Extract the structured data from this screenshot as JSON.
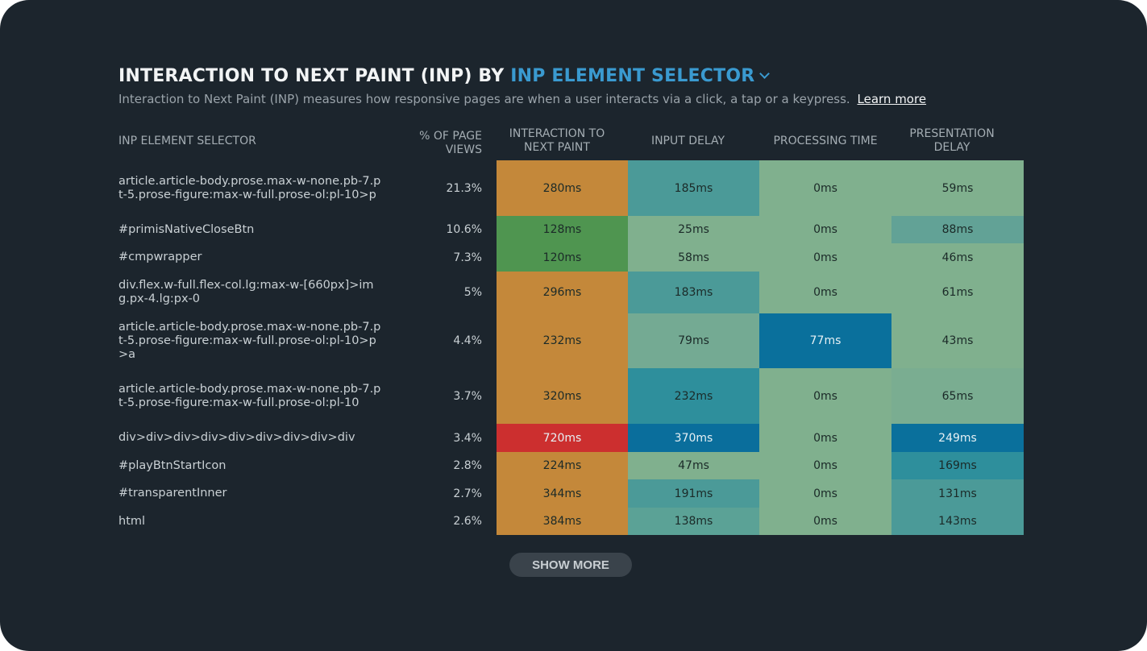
{
  "title": {
    "prefix": "INTERACTION TO NEXT PAINT (INP) BY",
    "dimension": "INP ELEMENT SELECTOR"
  },
  "subtitle": {
    "text": "Interaction to Next Paint (INP) measures how responsive pages are when a user interacts via a click, a tap or a keypress.",
    "link": "Learn more"
  },
  "show_more": "SHOW MORE",
  "chart_data": {
    "type": "table",
    "title": "INTERACTION TO NEXT PAINT (INP) BY INP ELEMENT SELECTOR",
    "columns": [
      "INP ELEMENT SELECTOR",
      "% OF PAGE VIEWS",
      "INTERACTION TO NEXT PAINT",
      "INPUT DELAY",
      "PROCESSING TIME",
      "PRESENTATION DELAY"
    ],
    "rows": [
      {
        "selector": "article.article-body.prose.max-w-none.pb-7.pt-5.prose-figure:max-w-full.prose-ol:pl-10>p",
        "pct": "21.3%",
        "values": [
          "280ms",
          "185ms",
          "0ms",
          "59ms"
        ],
        "colors": [
          "#c4883a",
          "#4b9a98",
          "#80b08e",
          "#80b08e"
        ]
      },
      {
        "selector": "#primisNativeCloseBtn",
        "pct": "10.6%",
        "values": [
          "128ms",
          "25ms",
          "0ms",
          "88ms"
        ],
        "colors": [
          "#4f9550",
          "#80b08e",
          "#80b08e",
          "#62a296"
        ]
      },
      {
        "selector": "#cmpwrapper",
        "pct": "7.3%",
        "values": [
          "120ms",
          "58ms",
          "0ms",
          "46ms"
        ],
        "colors": [
          "#4f9550",
          "#80b08e",
          "#80b08e",
          "#80b08e"
        ]
      },
      {
        "selector": "div.flex.w-full.flex-col.lg:max-w-[660px]>img.px-4.lg:px-0",
        "pct": "5%",
        "values": [
          "296ms",
          "183ms",
          "0ms",
          "61ms"
        ],
        "colors": [
          "#c4883a",
          "#4b9a98",
          "#80b08e",
          "#80b08e"
        ]
      },
      {
        "selector": "article.article-body.prose.max-w-none.pb-7.pt-5.prose-figure:max-w-full.prose-ol:pl-10>p>a",
        "pct": "4.4%",
        "values": [
          "232ms",
          "79ms",
          "77ms",
          "43ms"
        ],
        "colors": [
          "#c4883a",
          "#74aa93",
          "#0a709c",
          "#80b08e"
        ]
      },
      {
        "selector": "article.article-body.prose.max-w-none.pb-7.pt-5.prose-figure:max-w-full.prose-ol:pl-10",
        "pct": "3.7%",
        "values": [
          "320ms",
          "232ms",
          "0ms",
          "65ms"
        ],
        "colors": [
          "#c4883a",
          "#2e8f9c",
          "#80b08e",
          "#7aad91"
        ]
      },
      {
        "selector": "div>div>div>div>div>div>div>div>div",
        "pct": "3.4%",
        "values": [
          "720ms",
          "370ms",
          "0ms",
          "249ms"
        ],
        "colors": [
          "#cc2f2f",
          "#0a6e9c",
          "#80b08e",
          "#0a709c"
        ]
      },
      {
        "selector": "#playBtnStartIcon",
        "pct": "2.8%",
        "values": [
          "224ms",
          "47ms",
          "0ms",
          "169ms"
        ],
        "colors": [
          "#c4883a",
          "#80b08e",
          "#80b08e",
          "#2e8f9c"
        ]
      },
      {
        "selector": "#transparentInner",
        "pct": "2.7%",
        "values": [
          "344ms",
          "191ms",
          "0ms",
          "131ms"
        ],
        "colors": [
          "#c4883a",
          "#4b9a98",
          "#80b08e",
          "#4b9a98"
        ]
      },
      {
        "selector": "html",
        "pct": "2.6%",
        "values": [
          "384ms",
          "138ms",
          "0ms",
          "143ms"
        ],
        "colors": [
          "#c4883a",
          "#5ba296",
          "#80b08e",
          "#4b9a98"
        ]
      }
    ],
    "light_text_values": [
      "720ms",
      "370ms",
      "77ms",
      "249ms"
    ]
  }
}
